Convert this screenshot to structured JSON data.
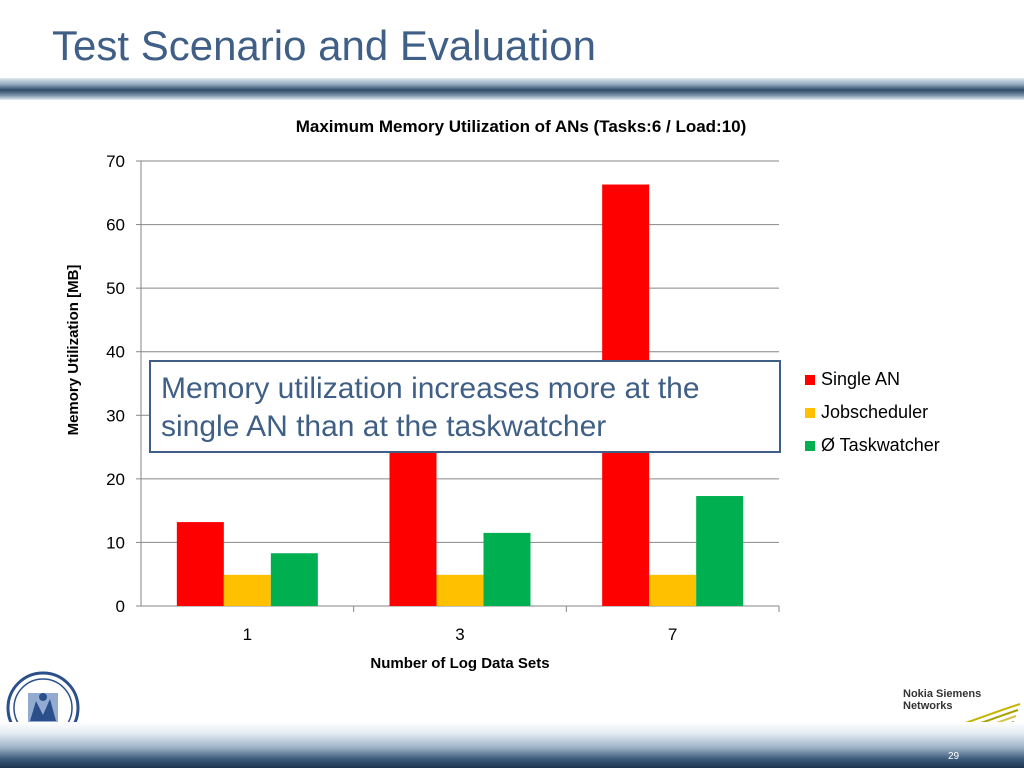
{
  "slide": {
    "title": "Test Scenario and Evaluation",
    "callout": "Memory utilization increases more at the single AN than at the taskwatcher",
    "page_number": "29",
    "brand_line1": "Nokia Siemens",
    "brand_line2": "Networks"
  },
  "chart_data": {
    "type": "bar",
    "title": "Maximum Memory Utilization of ANs (Tasks:6 / Load:10)",
    "xlabel": "Number of Log Data Sets",
    "ylabel": "Memory Utilization [MB]",
    "categories": [
      "1",
      "3",
      "7"
    ],
    "ylim": [
      0,
      70
    ],
    "yticks": [
      0,
      10,
      20,
      30,
      40,
      50,
      60,
      70
    ],
    "grid": true,
    "legend_position": "right",
    "series": [
      {
        "name": "Single AN",
        "color": "#ff0000",
        "values": [
          13.2,
          24.5,
          66.3
        ]
      },
      {
        "name": "Jobscheduler",
        "color": "#ffc000",
        "values": [
          4.9,
          4.9,
          4.9
        ]
      },
      {
        "name": "Ø Taskwatcher",
        "color": "#00b050",
        "values": [
          8.3,
          11.5,
          17.3
        ]
      }
    ]
  }
}
